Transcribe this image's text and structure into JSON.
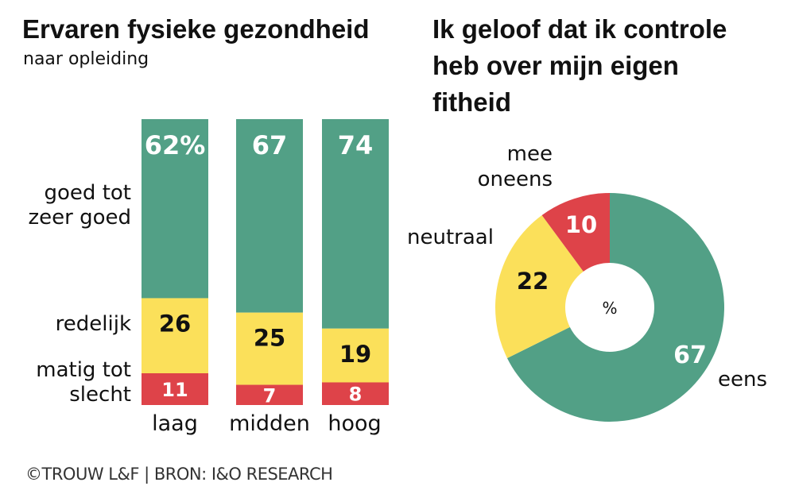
{
  "colors": {
    "good": "#52a086",
    "neutral": "#fbe05a",
    "bad": "#de4349",
    "text_dark": "#111111",
    "text_light": "#ffffff"
  },
  "left": {
    "title": "Ervaren fysieke gezondheid",
    "subtitle": "naar opleiding"
  },
  "right": {
    "title_lines": [
      "Ik geloof dat ik controle",
      "heb over mijn eigen",
      "fitheid"
    ],
    "center_label": "%"
  },
  "footer": {
    "source": "©TROUW L&F | BRON: I&O RESEARCH"
  },
  "chart_data": [
    {
      "type": "bar",
      "stacked": true,
      "orientation": "vertical",
      "title": "Ervaren fysieke gezondheid",
      "subtitle": "naar opleiding",
      "categories": [
        "laag",
        "midden",
        "hoog"
      ],
      "series": [
        {
          "name": "goed tot zeer goed",
          "name_lines": [
            "goed tot",
            "zeer goed"
          ],
          "color": "#52a086",
          "values": [
            62,
            67,
            74
          ],
          "labels": [
            "62%",
            "67",
            "74"
          ]
        },
        {
          "name": "redelijk",
          "name_lines": [
            "redelijk"
          ],
          "color": "#fbe05a",
          "values": [
            26,
            25,
            19
          ],
          "labels": [
            "26",
            "25",
            "19"
          ]
        },
        {
          "name": "matig tot slecht",
          "name_lines": [
            "matig tot",
            "slecht"
          ],
          "color": "#de4349",
          "values": [
            11,
            7,
            8
          ],
          "labels": [
            "11",
            "7",
            "8"
          ]
        }
      ],
      "unit": "%"
    },
    {
      "type": "pie",
      "donut": true,
      "title": "Ik geloof dat ik controle heb over mijn eigen fitheid",
      "center_label": "%",
      "slices": [
        {
          "name": "eens",
          "name_lines": [
            "eens"
          ],
          "value": 67,
          "color": "#52a086",
          "label": "67"
        },
        {
          "name": "neutraal",
          "name_lines": [
            "neutraal"
          ],
          "value": 22,
          "color": "#fbe05a",
          "label": "22"
        },
        {
          "name": "mee oneens",
          "name_lines": [
            "mee",
            "oneens"
          ],
          "value": 10,
          "color": "#de4349",
          "label": "10"
        }
      ]
    }
  ]
}
